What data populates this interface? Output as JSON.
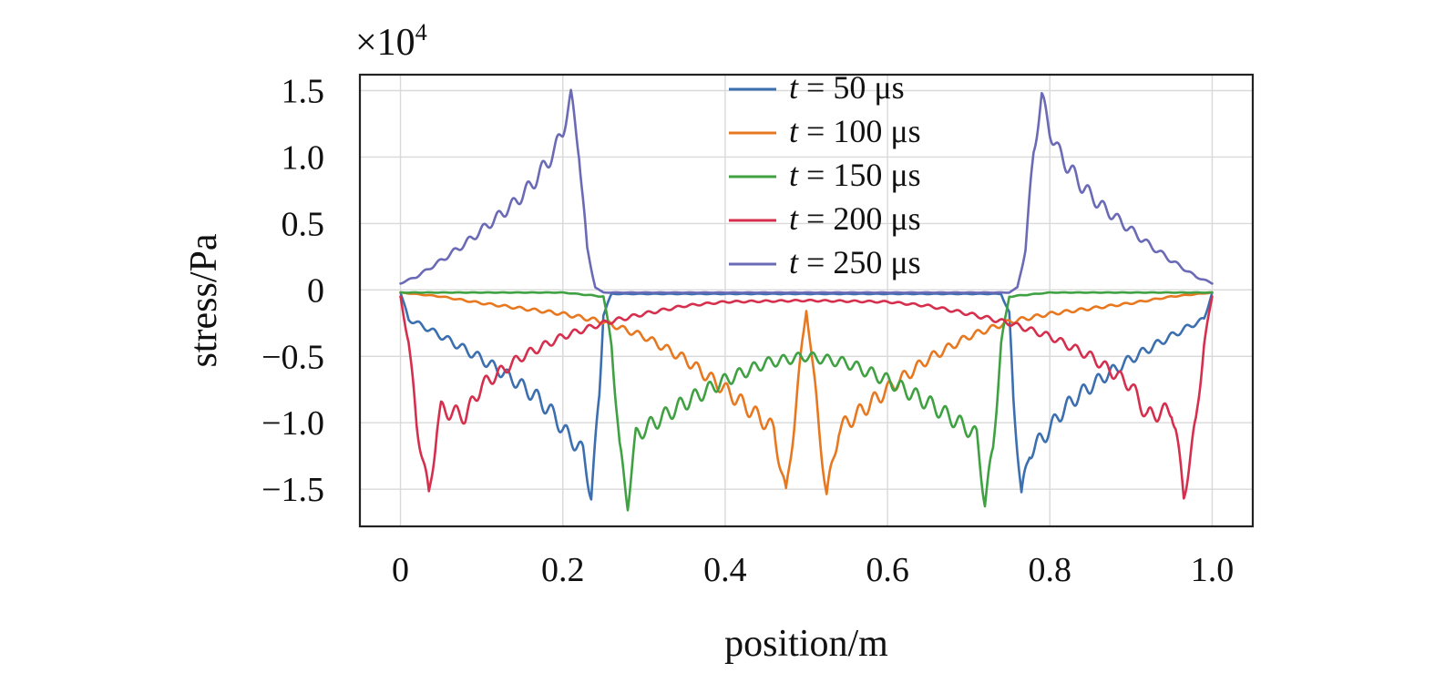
{
  "chart_data": {
    "type": "line",
    "xlabel": "position/m",
    "ylabel": "stress/Pa",
    "y_multiplier": "×10",
    "y_multiplier_exp": "4",
    "xlim": [
      -0.05,
      1.05
    ],
    "ylim": [
      -1.78,
      1.62
    ],
    "x_ticks": [
      0,
      0.2,
      0.4,
      0.6,
      0.8,
      1.0
    ],
    "x_tick_labels": [
      "0",
      "0.2",
      "0.4",
      "0.6",
      "0.8",
      "1.0"
    ],
    "y_ticks": [
      1.5,
      1.0,
      0.5,
      0,
      -0.5,
      -1.0,
      -1.5
    ],
    "y_tick_labels": [
      "1.5",
      "1.0",
      "0.5",
      "0",
      "−0.5",
      "−1.0",
      "−1.5"
    ],
    "grid": true,
    "legend_position": "top-center",
    "series": [
      {
        "name": "t = 50 μs",
        "legend_var": "t",
        "legend_rest": " = 50 μs",
        "color": "#3c6fb0",
        "points": [
          [
            0,
            -0.02
          ],
          [
            0.01,
            -0.22
          ],
          [
            0.03,
            -0.28
          ],
          [
            0.06,
            -0.38
          ],
          [
            0.1,
            -0.52
          ],
          [
            0.14,
            -0.68
          ],
          [
            0.17,
            -0.82
          ],
          [
            0.19,
            -0.95
          ],
          [
            0.2,
            -1.05
          ],
          [
            0.21,
            -1.12
          ],
          [
            0.225,
            -1.22
          ],
          [
            0.235,
            -1.55
          ],
          [
            0.245,
            -0.8
          ],
          [
            0.25,
            -0.18
          ],
          [
            0.26,
            -0.03
          ],
          [
            0.4,
            -0.03
          ],
          [
            0.6,
            -0.03
          ],
          [
            0.74,
            -0.03
          ],
          [
            0.75,
            -0.18
          ],
          [
            0.755,
            -0.8
          ],
          [
            0.765,
            -1.55
          ],
          [
            0.775,
            -1.22
          ],
          [
            0.79,
            -1.12
          ],
          [
            0.8,
            -1.05
          ],
          [
            0.81,
            -0.95
          ],
          [
            0.83,
            -0.82
          ],
          [
            0.86,
            -0.68
          ],
          [
            0.9,
            -0.52
          ],
          [
            0.94,
            -0.38
          ],
          [
            0.97,
            -0.28
          ],
          [
            0.99,
            -0.22
          ],
          [
            1.0,
            -0.02
          ]
        ]
      },
      {
        "name": "t = 100 μs",
        "legend_var": "t",
        "legend_rest": " = 100 μs",
        "color": "#e8781f",
        "points": [
          [
            0,
            -0.02
          ],
          [
            0.05,
            -0.05
          ],
          [
            0.1,
            -0.1
          ],
          [
            0.15,
            -0.14
          ],
          [
            0.2,
            -0.18
          ],
          [
            0.25,
            -0.24
          ],
          [
            0.3,
            -0.35
          ],
          [
            0.35,
            -0.52
          ],
          [
            0.4,
            -0.75
          ],
          [
            0.43,
            -0.9
          ],
          [
            0.46,
            -1.05
          ],
          [
            0.475,
            -1.55
          ],
          [
            0.485,
            -1.0
          ],
          [
            0.495,
            -0.4
          ],
          [
            0.5,
            -0.15
          ],
          [
            0.505,
            -0.4
          ],
          [
            0.515,
            -1.0
          ],
          [
            0.525,
            -1.55
          ],
          [
            0.54,
            -1.05
          ],
          [
            0.57,
            -0.9
          ],
          [
            0.6,
            -0.75
          ],
          [
            0.65,
            -0.52
          ],
          [
            0.7,
            -0.35
          ],
          [
            0.75,
            -0.24
          ],
          [
            0.8,
            -0.18
          ],
          [
            0.85,
            -0.14
          ],
          [
            0.9,
            -0.1
          ],
          [
            0.95,
            -0.05
          ],
          [
            1.0,
            -0.02
          ]
        ]
      },
      {
        "name": "t = 150 μs",
        "legend_var": "t",
        "legend_rest": " = 150 μs",
        "color": "#3fa142",
        "points": [
          [
            0,
            -0.02
          ],
          [
            0.1,
            -0.02
          ],
          [
            0.2,
            -0.02
          ],
          [
            0.25,
            -0.05
          ],
          [
            0.26,
            -0.4
          ],
          [
            0.27,
            -1.2
          ],
          [
            0.28,
            -1.6
          ],
          [
            0.29,
            -1.1
          ],
          [
            0.3,
            -1.05
          ],
          [
            0.35,
            -0.85
          ],
          [
            0.4,
            -0.68
          ],
          [
            0.45,
            -0.55
          ],
          [
            0.5,
            -0.5
          ],
          [
            0.55,
            -0.55
          ],
          [
            0.6,
            -0.68
          ],
          [
            0.65,
            -0.85
          ],
          [
            0.7,
            -1.05
          ],
          [
            0.71,
            -1.1
          ],
          [
            0.72,
            -1.6
          ],
          [
            0.73,
            -1.2
          ],
          [
            0.74,
            -0.4
          ],
          [
            0.75,
            -0.05
          ],
          [
            0.8,
            -0.02
          ],
          [
            0.9,
            -0.02
          ],
          [
            1.0,
            -0.02
          ]
        ]
      },
      {
        "name": "t = 200 μs",
        "legend_var": "t",
        "legend_rest": " = 200 μs",
        "color": "#d62f4d",
        "points": [
          [
            0,
            -0.05
          ],
          [
            0.01,
            -0.4
          ],
          [
            0.02,
            -1.0
          ],
          [
            0.035,
            -1.55
          ],
          [
            0.045,
            -1.05
          ],
          [
            0.05,
            -0.9
          ],
          [
            0.08,
            -0.95
          ],
          [
            0.1,
            -0.72
          ],
          [
            0.15,
            -0.5
          ],
          [
            0.2,
            -0.35
          ],
          [
            0.25,
            -0.25
          ],
          [
            0.3,
            -0.18
          ],
          [
            0.35,
            -0.12
          ],
          [
            0.4,
            -0.09
          ],
          [
            0.5,
            -0.08
          ],
          [
            0.6,
            -0.09
          ],
          [
            0.65,
            -0.12
          ],
          [
            0.7,
            -0.18
          ],
          [
            0.75,
            -0.25
          ],
          [
            0.8,
            -0.35
          ],
          [
            0.85,
            -0.5
          ],
          [
            0.9,
            -0.72
          ],
          [
            0.92,
            -0.95
          ],
          [
            0.95,
            -0.9
          ],
          [
            0.955,
            -1.05
          ],
          [
            0.965,
            -1.55
          ],
          [
            0.98,
            -1.0
          ],
          [
            0.99,
            -0.4
          ],
          [
            1.0,
            -0.05
          ]
        ]
      },
      {
        "name": "t = 250 μs",
        "legend_var": "t",
        "legend_rest": " = 250 μs",
        "color": "#6a6ab6",
        "points": [
          [
            0,
            0.05
          ],
          [
            0.02,
            0.1
          ],
          [
            0.05,
            0.22
          ],
          [
            0.08,
            0.35
          ],
          [
            0.11,
            0.5
          ],
          [
            0.14,
            0.65
          ],
          [
            0.16,
            0.78
          ],
          [
            0.18,
            0.95
          ],
          [
            0.19,
            1.05
          ],
          [
            0.2,
            1.2
          ],
          [
            0.21,
            1.45
          ],
          [
            0.22,
            1.05
          ],
          [
            0.23,
            0.3
          ],
          [
            0.24,
            0.02
          ],
          [
            0.25,
            -0.02
          ],
          [
            0.5,
            -0.02
          ],
          [
            0.75,
            -0.02
          ],
          [
            0.76,
            0.02
          ],
          [
            0.77,
            0.3
          ],
          [
            0.78,
            1.05
          ],
          [
            0.79,
            1.45
          ],
          [
            0.8,
            1.2
          ],
          [
            0.81,
            1.05
          ],
          [
            0.82,
            0.95
          ],
          [
            0.84,
            0.78
          ],
          [
            0.86,
            0.65
          ],
          [
            0.89,
            0.5
          ],
          [
            0.92,
            0.35
          ],
          [
            0.95,
            0.22
          ],
          [
            0.98,
            0.1
          ],
          [
            1.0,
            0.05
          ]
        ]
      }
    ]
  }
}
